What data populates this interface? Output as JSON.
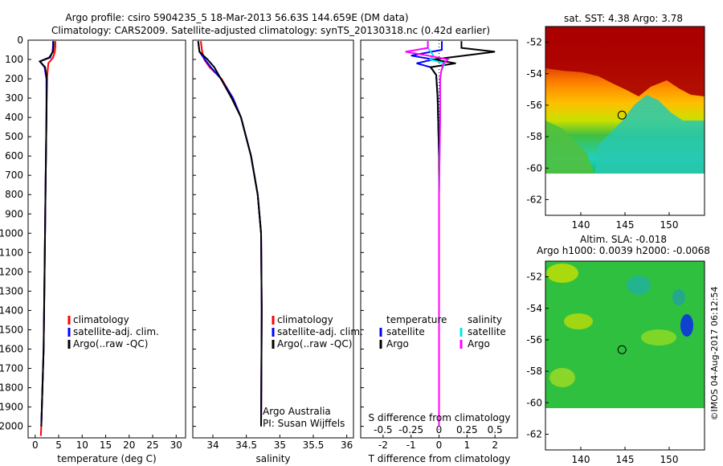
{
  "header": {
    "title_line1": "Argo profile: csiro 5904235_5 18-Mar-2013 56.63S 144.659E (DM data)",
    "title_line2": "Climatology: CARS2009. Satellite-adjusted climatology: synTS_20130318.nc (0.42d earlier)"
  },
  "colors": {
    "climatology": "#ff0000",
    "satellite": "#0000ff",
    "argo": "#000000",
    "salinity_satellite": "#00e5ee",
    "salinity_argo": "#ff00ff"
  },
  "chart_data": [
    {
      "type": "line",
      "id": "temperature",
      "xlabel": "temperature (deg C)",
      "ylabel": "",
      "xlim": [
        -1.5,
        32
      ],
      "ylim": [
        2060,
        0
      ],
      "xticks": [
        "0",
        "5",
        "10",
        "15",
        "20",
        "25",
        "30"
      ],
      "yticks": [
        "0",
        "100",
        "200",
        "300",
        "400",
        "500",
        "600",
        "700",
        "800",
        "900",
        "1000",
        "1100",
        "1200",
        "1300",
        "1400",
        "1500",
        "1600",
        "1700",
        "1800",
        "1900",
        "2000"
      ],
      "legend": [
        "climatology",
        "satellite-adj. clim.",
        "Argo(..raw -QC)"
      ],
      "series": [
        {
          "name": "climatology",
          "depth": [
            5,
            30,
            60,
            90,
            120,
            200,
            400,
            800,
            1200,
            1600,
            2000,
            2050
          ],
          "values": [
            4.3,
            4.3,
            4.2,
            3.8,
            2.8,
            2.5,
            2.4,
            2.2,
            2.0,
            1.8,
            1.3,
            1.2
          ]
        },
        {
          "name": "satellite-adj. clim.",
          "depth": [
            5,
            30,
            60,
            90,
            110,
            140,
            200,
            400,
            800,
            1200,
            1600,
            2000
          ],
          "values": [
            3.8,
            3.8,
            3.7,
            3.2,
            1.0,
            2.0,
            2.4,
            2.4,
            2.2,
            2.0,
            1.8,
            1.3
          ]
        },
        {
          "name": "Argo(..raw -QC)",
          "depth": [
            5,
            30,
            60,
            90,
            110,
            140,
            200,
            400,
            800,
            1200,
            1600,
            2000
          ],
          "values": [
            3.9,
            3.9,
            3.8,
            3.0,
            1.0,
            2.1,
            2.5,
            2.4,
            2.2,
            2.0,
            1.8,
            1.3
          ]
        }
      ]
    },
    {
      "type": "line",
      "id": "salinity",
      "xlabel": "salinity",
      "ylabel": "",
      "xlim": [
        33.7,
        36.1
      ],
      "ylim": [
        2060,
        0
      ],
      "xticks": [
        "34",
        "34.5",
        "35",
        "35.5",
        "36"
      ],
      "legend": [
        "climatology",
        "satellite-adj. clim.",
        "Argo(..raw -QC)"
      ],
      "note_line1": "Argo Australia",
      "note_line2": "PI: Susan Wijffels",
      "series": [
        {
          "name": "climatology",
          "depth": [
            5,
            60,
            100,
            140,
            200,
            300,
            400,
            600,
            800,
            1000,
            1400,
            2000
          ],
          "values": [
            33.82,
            33.84,
            33.87,
            33.95,
            34.13,
            34.3,
            34.42,
            34.57,
            34.67,
            34.72,
            34.73,
            34.72
          ]
        },
        {
          "name": "satellite-adj. clim.",
          "depth": [
            5,
            60,
            100,
            140,
            200,
            300,
            400,
            600,
            800,
            1000,
            1400,
            2000
          ],
          "values": [
            33.78,
            33.8,
            33.88,
            33.97,
            34.12,
            34.3,
            34.42,
            34.57,
            34.67,
            34.72,
            34.73,
            34.72
          ]
        },
        {
          "name": "Argo(..raw -QC)",
          "depth": [
            5,
            60,
            100,
            140,
            200,
            300,
            400,
            600,
            800,
            1000,
            1400,
            2000
          ],
          "values": [
            33.78,
            33.8,
            33.92,
            34.02,
            34.12,
            34.28,
            34.42,
            34.57,
            34.67,
            34.72,
            34.73,
            34.72
          ]
        }
      ]
    },
    {
      "type": "line",
      "id": "differences",
      "xlabel": "T difference from climatology",
      "xlabel_top": "S difference from climatology",
      "xlim": [
        -2.8,
        2.8
      ],
      "ylim": [
        2060,
        0
      ],
      "xticks": [
        "-2",
        "-1",
        "0",
        "1",
        "2"
      ],
      "xticks_top": [
        "-0.5",
        "-0.25",
        "0",
        "0.25",
        "0.5"
      ],
      "legend_temperature_title": "temperature",
      "legend_salinity_title": "salinity",
      "legend_temperature": [
        "satellite",
        "Argo"
      ],
      "legend_salinity": [
        "satellite",
        "Argo"
      ],
      "series": [
        {
          "name": "T satellite",
          "depth": [
            5,
            50,
            80,
            100,
            120,
            140,
            160,
            180,
            300,
            600,
            1000,
            1500,
            2000
          ],
          "values": [
            0.1,
            0.1,
            -1.0,
            -0.2,
            -0.8,
            -0.3,
            -0.2,
            -0.1,
            -0.05,
            0,
            0,
            0,
            0
          ]
        },
        {
          "name": "T Argo",
          "depth": [
            5,
            40,
            60,
            80,
            100,
            120,
            140,
            180,
            300,
            600,
            1000,
            1500,
            2000
          ],
          "values": [
            0.8,
            0.8,
            2.0,
            0.9,
            -0.2,
            0.6,
            -0.3,
            -0.1,
            -0.05,
            0,
            0,
            0,
            0
          ]
        },
        {
          "name": "S satellite",
          "depth": [
            5,
            40,
            80,
            100,
            120,
            160,
            200,
            400,
            800,
            1200,
            1600,
            2000
          ],
          "values": [
            -0.1,
            -0.1,
            -0.05,
            -0.08,
            0.05,
            0.02,
            0.01,
            0.01,
            0,
            0,
            0,
            0
          ]
        },
        {
          "name": "S Argo",
          "depth": [
            5,
            40,
            60,
            80,
            100,
            120,
            160,
            200,
            400,
            800,
            1200,
            2000
          ],
          "values": [
            -0.1,
            -0.1,
            -0.3,
            -0.1,
            0.08,
            0.04,
            0.02,
            0.01,
            0.01,
            0,
            0,
            0
          ]
        }
      ]
    },
    {
      "type": "heatmap",
      "id": "sst_map",
      "title": "sat. SST: 4.38 Argo: 3.78",
      "xlim": [
        136,
        154
      ],
      "ylim": [
        -63,
        -51
      ],
      "xticks": [
        "140",
        "145",
        "150"
      ],
      "yticks": [
        "-52",
        "-54",
        "-56",
        "-58",
        "-60",
        "-62"
      ],
      "profile_lon": 144.659,
      "profile_lat": -56.63
    },
    {
      "type": "heatmap",
      "id": "sla_map",
      "title_line1": "Altim. SLA: -0.018",
      "title_line2": "Argo h1000: 0.0039 h2000: -0.0068",
      "xlim": [
        136,
        154
      ],
      "ylim": [
        -63,
        -51
      ],
      "xticks": [
        "140",
        "145",
        "150"
      ],
      "yticks": [
        "-52",
        "-54",
        "-56",
        "-58",
        "-60",
        "-62"
      ],
      "profile_lon": 144.659,
      "profile_lat": -56.63,
      "credit": "©IMOS 04-Aug-2017 06:12:54"
    }
  ]
}
